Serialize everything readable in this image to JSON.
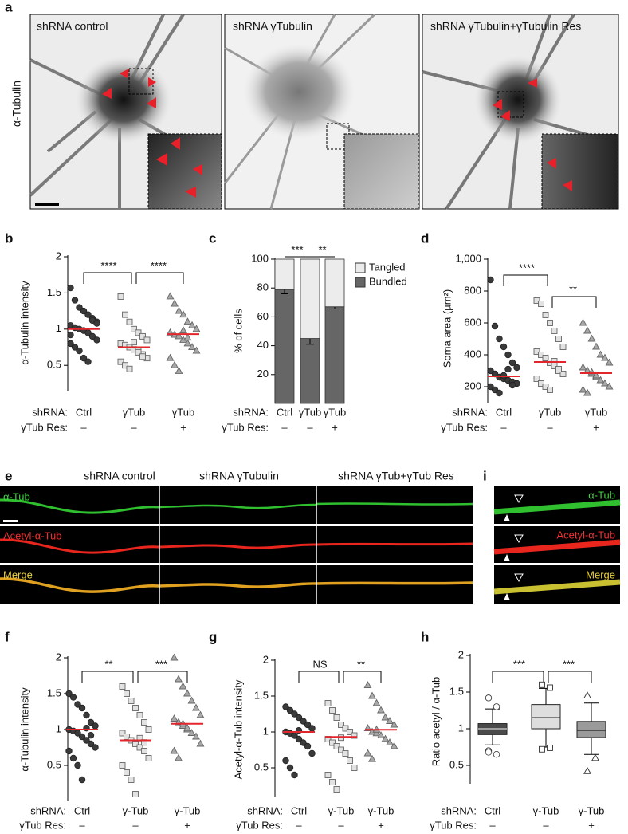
{
  "panel_labels": [
    "a",
    "b",
    "c",
    "d",
    "e",
    "f",
    "g",
    "h",
    "i"
  ],
  "images": {
    "ylabel": "α-Tubulin",
    "titles": [
      "shRNA control",
      "shRNA γTubulin",
      "shRNA γTubulin+γTubulin Res"
    ]
  },
  "strips": {
    "titles": [
      "shRNA control",
      "shRNA γTubulin",
      "shRNA γTub+γTub Res"
    ],
    "channels": [
      "α-Tub",
      "Acetyl-α-Tub",
      "Merge"
    ]
  },
  "chart_data": [
    {
      "type": "dot",
      "ylabel": "α-Tubulin intensity",
      "ylim": [
        0.15,
        2
      ],
      "yticks": [
        0.5,
        1,
        1.5,
        2
      ],
      "categories": [
        "Ctrl",
        "γTub",
        "γTub"
      ],
      "row_labels": [
        "shRNA:",
        "γTub Res:"
      ],
      "rescue": [
        "–",
        "–",
        "+"
      ],
      "significance": [
        "****",
        "****"
      ],
      "mean_color": "#e3262b",
      "groups": [
        {
          "marker": "circle",
          "color": "#3a3a3a",
          "mean": 1.0,
          "values": [
            1.57,
            1.4,
            1.3,
            1.25,
            1.2,
            1.15,
            1.1,
            1.05,
            1.02,
            1.0,
            0.98,
            0.95,
            0.9,
            0.85,
            0.8,
            0.75,
            0.7,
            0.6,
            0.55,
            1.12,
            1.08,
            0.92
          ]
        },
        {
          "marker": "square",
          "color": "#e2e2e2",
          "mean": 0.75,
          "values": [
            1.45,
            1.2,
            1.1,
            1.0,
            0.95,
            0.9,
            0.85,
            0.8,
            0.78,
            0.75,
            0.72,
            0.7,
            0.65,
            0.6,
            0.55,
            0.5,
            0.45,
            0.82,
            0.68,
            0.62
          ]
        },
        {
          "marker": "triangle",
          "color": "#a8a8a8",
          "mean": 0.93,
          "values": [
            1.45,
            1.35,
            1.25,
            1.2,
            1.1,
            1.05,
            1.0,
            0.95,
            0.92,
            0.9,
            0.85,
            0.8,
            0.75,
            0.7,
            0.6,
            0.5,
            0.42,
            0.98,
            0.88
          ]
        }
      ]
    },
    {
      "type": "stacked_bar",
      "ylabel": "% of cells",
      "ylim": [
        0,
        100
      ],
      "yticks": [
        20,
        40,
        60,
        80,
        100
      ],
      "categories": [
        "Ctrl",
        "γTub",
        "γTub"
      ],
      "row_labels": [
        "shRNA:",
        "γTub Res:"
      ],
      "rescue": [
        "–",
        "–",
        "+"
      ],
      "significance": [
        "***",
        "**"
      ],
      "legend": "upper right",
      "series": [
        {
          "name": "Bundled",
          "color": "#666666",
          "values": [
            79,
            45,
            67
          ],
          "errors": [
            3,
            4,
            1.5
          ]
        },
        {
          "name": "Tangled",
          "color": "#ececec",
          "values": [
            21,
            55,
            33
          ]
        }
      ]
    },
    {
      "type": "dot",
      "ylabel": "Soma area (µm²)",
      "ylim": [
        100,
        1000
      ],
      "yticks": [
        200,
        400,
        600,
        800,
        {
          "value": 1000,
          "label": "1,000"
        }
      ],
      "categories": [
        "Ctrl",
        "γTub",
        "γTub"
      ],
      "row_labels": [
        "shRNA:",
        "γTub Res:"
      ],
      "rescue": [
        "–",
        "–",
        "+"
      ],
      "significance": [
        "****",
        "**"
      ],
      "mean_color": "#e3262b",
      "groups": [
        {
          "marker": "circle",
          "color": "#3a3a3a",
          "mean": 265,
          "values": [
            870,
            580,
            500,
            450,
            400,
            350,
            320,
            300,
            280,
            260,
            250,
            240,
            230,
            220,
            200,
            180,
            160,
            270,
            310,
            210
          ]
        },
        {
          "marker": "square",
          "color": "#e2e2e2",
          "mean": 355,
          "values": [
            740,
            720,
            650,
            600,
            550,
            500,
            450,
            420,
            400,
            380,
            350,
            330,
            300,
            280,
            250,
            220,
            200,
            180,
            360,
            310
          ]
        },
        {
          "marker": "triangle",
          "color": "#a8a8a8",
          "mean": 285,
          "values": [
            600,
            550,
            500,
            450,
            400,
            380,
            350,
            320,
            300,
            280,
            260,
            240,
            220,
            200,
            180,
            160,
            290,
            270
          ]
        }
      ]
    },
    {
      "type": "dot",
      "ylabel": "α-Tubulin intensity",
      "ylim": [
        0,
        2
      ],
      "yticks": [
        0.5,
        1,
        1.5,
        2
      ],
      "categories": [
        "Ctrl",
        "γ-Tub",
        "γ-Tub"
      ],
      "row_labels": [
        "shRNA:",
        "γTub Res:"
      ],
      "rescue": [
        "–",
        "–",
        "+"
      ],
      "significance": [
        "**",
        "***"
      ],
      "mean_color": "#e3262b",
      "groups": [
        {
          "marker": "circle",
          "color": "#3a3a3a",
          "mean": 1.0,
          "values": [
            1.5,
            1.45,
            1.35,
            1.3,
            1.2,
            1.1,
            1.05,
            1.0,
            0.98,
            0.95,
            0.9,
            0.85,
            0.8,
            0.75,
            0.7,
            0.6,
            0.5,
            0.3,
            1.02,
            0.92
          ]
        },
        {
          "marker": "square",
          "color": "#e2e2e2",
          "mean": 0.85,
          "values": [
            1.6,
            1.5,
            1.4,
            1.3,
            1.2,
            1.1,
            1.0,
            0.95,
            0.9,
            0.85,
            0.8,
            0.75,
            0.7,
            0.6,
            0.5,
            0.4,
            0.3,
            0.1,
            0.88,
            0.82
          ]
        },
        {
          "marker": "triangle",
          "color": "#a8a8a8",
          "mean": 1.08,
          "values": [
            2.0,
            1.7,
            1.6,
            1.5,
            1.4,
            1.3,
            1.2,
            1.15,
            1.1,
            1.05,
            1.0,
            0.95,
            0.9,
            0.8,
            0.7,
            0.6,
            1.08,
            1.02
          ]
        }
      ]
    },
    {
      "type": "dot",
      "ylabel": "Acetyl-α-Tub intensity",
      "ylim": [
        0.1,
        2
      ],
      "yticks": [
        0.5,
        1,
        1.5,
        2
      ],
      "categories": [
        "Ctrl",
        "γ-Tub",
        "γ-Tub"
      ],
      "row_labels": [
        "shRNA:",
        "γTub Res:"
      ],
      "rescue": [
        "–",
        "–",
        "+"
      ],
      "significance": [
        "NS",
        "**"
      ],
      "mean_color": "#e3262b",
      "groups": [
        {
          "marker": "circle",
          "color": "#3a3a3a",
          "mean": 1.0,
          "values": [
            1.35,
            1.3,
            1.25,
            1.2,
            1.15,
            1.1,
            1.05,
            1.0,
            0.98,
            0.95,
            0.9,
            0.85,
            0.8,
            0.7,
            0.6,
            0.5,
            0.4,
            1.02
          ]
        },
        {
          "marker": "square",
          "color": "#e2e2e2",
          "mean": 0.93,
          "values": [
            1.4,
            1.3,
            1.2,
            1.1,
            1.05,
            1.0,
            0.95,
            0.9,
            0.85,
            0.8,
            0.75,
            0.7,
            0.6,
            0.5,
            0.4,
            0.3,
            0.2,
            0.92
          ]
        },
        {
          "marker": "triangle",
          "color": "#a8a8a8",
          "mean": 1.03,
          "values": [
            1.65,
            1.5,
            1.4,
            1.3,
            1.2,
            1.15,
            1.1,
            1.05,
            1.0,
            0.98,
            0.95,
            0.9,
            0.85,
            0.8,
            0.7,
            0.62,
            1.03
          ]
        }
      ]
    },
    {
      "type": "box",
      "ylabel": "Ratio acetyl / α-Tub",
      "ylim": [
        0.25,
        2
      ],
      "yticks": [
        0.5,
        1,
        1.5,
        2
      ],
      "categories": [
        "Ctrl",
        "γ-Tub",
        "γ-Tub"
      ],
      "row_labels": [
        "shRNA:",
        "γTub Res:"
      ],
      "rescue": [
        "–",
        "–",
        "+"
      ],
      "significance": [
        "***",
        "***"
      ],
      "boxes": [
        {
          "marker": "circle",
          "color": "#4a4a4a",
          "whisker_low": 0.78,
          "q1": 0.92,
          "median": 1.0,
          "q3": 1.07,
          "whisker_high": 1.27,
          "outliers": [
            1.42,
            1.3,
            0.7,
            0.65,
            0.68
          ]
        },
        {
          "marker": "square",
          "color": "#dedede",
          "whisker_low": 0.75,
          "q1": 1.0,
          "median": 1.15,
          "q3": 1.33,
          "whisker_high": 1.55,
          "outliers": [
            1.6,
            1.56,
            0.72,
            0.74
          ]
        },
        {
          "marker": "triangle",
          "color": "#9a9a9a",
          "whisker_low": 0.65,
          "q1": 0.88,
          "median": 0.98,
          "q3": 1.1,
          "whisker_high": 1.35,
          "outliers": [
            1.45,
            0.6,
            0.42
          ]
        }
      ]
    }
  ]
}
